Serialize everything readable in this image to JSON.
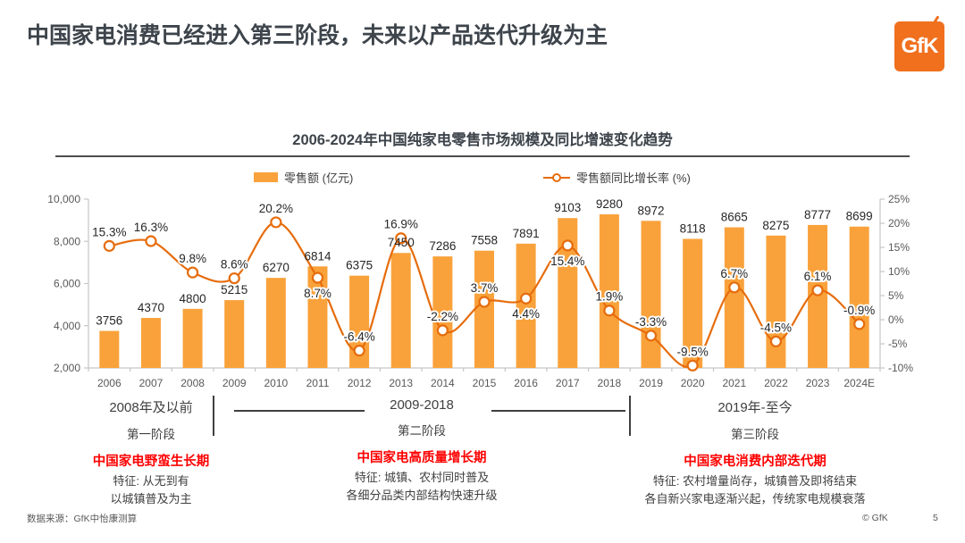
{
  "page": {
    "title": "中国家电消费已经进入第三阶段，未来以产品迭代升级为主",
    "logo_text": "GfK",
    "footer": {
      "source": "数据来源：GfK中怡康测算",
      "copyright": "© GfK",
      "page_number": "5"
    }
  },
  "chart_data": {
    "type": "bar+line",
    "title": "2006-2024年中国纯家电零售市场规模及同比增速变化趋势",
    "categories": [
      "2006",
      "2007",
      "2008",
      "2009",
      "2010",
      "2011",
      "2012",
      "2013",
      "2014",
      "2015",
      "2016",
      "2017",
      "2018",
      "2019",
      "2020",
      "2021",
      "2022",
      "2023",
      "2024E"
    ],
    "series": [
      {
        "name": "零售额 (亿元)",
        "type": "bar",
        "axis": "left",
        "color": "#F9A23B",
        "values": [
          3756,
          4370,
          4800,
          5215,
          6270,
          6814,
          6375,
          7450,
          7286,
          7558,
          7891,
          9103,
          9280,
          8972,
          8118,
          8665,
          8275,
          8777,
          8699
        ]
      },
      {
        "name": "零售额同比增长率 (%)",
        "type": "line",
        "axis": "right",
        "color": "#E66C0C",
        "marker_fill": "#FFFFFF",
        "values": [
          15.3,
          16.3,
          9.8,
          8.6,
          20.2,
          8.7,
          -6.4,
          16.9,
          -2.2,
          3.7,
          4.4,
          15.4,
          1.9,
          -3.3,
          -9.5,
          6.7,
          -4.5,
          6.1,
          -0.9
        ]
      }
    ],
    "left_axis": {
      "min": 2000,
      "max": 10000,
      "tick_labels": [
        "10,000",
        "8,000",
        "6,000",
        "4,000",
        "2,000"
      ]
    },
    "right_axis": {
      "min": -10,
      "max": 25,
      "tick_labels": [
        "25%",
        "20%",
        "15%",
        "10%",
        "5%",
        "0%",
        "-5%",
        "-10%"
      ]
    },
    "grid": false,
    "legend_position": "top",
    "pct_labels_below_indices": [
      5,
      10,
      11
    ]
  },
  "phases": [
    {
      "period": "2008年及以前",
      "stage": "第一阶段",
      "title": "中国家电野蛮生长期",
      "features": [
        "特征: 从无到有",
        "以城镇普及为主"
      ]
    },
    {
      "period": "2009-2018",
      "stage": "第二阶段",
      "title": "中国家电高质量增长期",
      "features": [
        "特征: 城镇、农村同时普及",
        "各细分品类内部结构快速升级"
      ]
    },
    {
      "period": "2019年-至今",
      "stage": "第三阶段",
      "title": "中国家电消费内部迭代期",
      "features": [
        "特征: 农村增量尚存，城镇普及即将结束",
        "各自新兴家电逐渐兴起，传统家电规模衰落"
      ]
    }
  ],
  "colors": {
    "bar_orange": "#F9A23B",
    "line_orange": "#E66C0C",
    "phase_red": "#FE0000",
    "title_dark": "#3D444B",
    "axis_gray": "#595959",
    "logo_orange": "#F0701E"
  }
}
